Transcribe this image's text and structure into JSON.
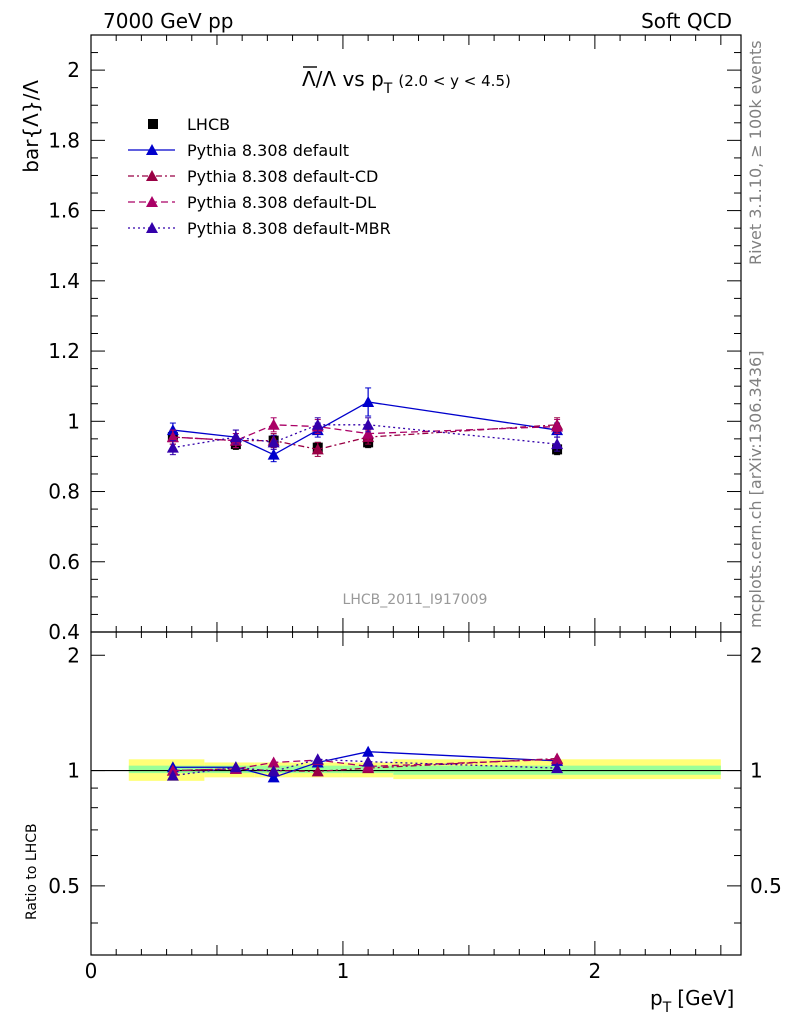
{
  "header": {
    "left": "7000 GeV pp",
    "right": "Soft QCD"
  },
  "side_labels": {
    "rivet": "Rivet 3.1.10, ≥ 100k events",
    "mcplots": "mcplots.cern.ch [arXiv:1306.3436]"
  },
  "colors": {
    "data": "#000000",
    "default": "#0000cc",
    "cd": "#990044",
    "dl": "#aa0066",
    "mbr": "#3300aa",
    "band_inner": "#99ff99",
    "band_outer": "#ffff77"
  },
  "chart_data": [
    {
      "type": "scatter",
      "panel": "main",
      "title_main": "Λ/Λ vs p",
      "title_sub": "T",
      "title_cut": "(2.0 < y < 4.5)",
      "ylabel": "bar{Λ}/Λ",
      "watermark": "LHCB_2011_I917009",
      "xlim": [
        0,
        2.58
      ],
      "ylim": [
        0.4,
        2.1
      ],
      "yticks": [
        0.6,
        0.8,
        1,
        1.2,
        1.4,
        1.6,
        1.8,
        2
      ],
      "ytick_labels": [
        "0.6",
        "0.8",
        "1",
        "1.2",
        "1.4",
        "1.6",
        "1.8",
        "2"
      ],
      "y_bottom_partial_label": "0.4",
      "x": [
        0.325,
        0.575,
        0.725,
        0.9,
        1.1,
        1.85
      ],
      "series": [
        {
          "name": "LHCB",
          "key": "data",
          "style": "marker",
          "marker": "square",
          "values": [
            0.955,
            0.935,
            0.945,
            0.925,
            0.94,
            0.92
          ],
          "errors": [
            0.02,
            0.015,
            0.015,
            0.015,
            0.015,
            0.015
          ]
        },
        {
          "name": "Pythia 8.308 default",
          "key": "default",
          "style": "solid",
          "marker": "triangle",
          "values": [
            0.975,
            0.955,
            0.905,
            0.975,
            1.055,
            0.975
          ],
          "errors": [
            0.02,
            0.02,
            0.02,
            0.02,
            0.04,
            0.02
          ]
        },
        {
          "name": "Pythia 8.308 default-CD",
          "key": "cd",
          "style": "dashdot",
          "marker": "triangle",
          "values": [
            0.955,
            0.945,
            0.945,
            0.92,
            0.955,
            0.99
          ],
          "errors": [
            0.02,
            0.02,
            0.02,
            0.02,
            0.02,
            0.02
          ]
        },
        {
          "name": "Pythia 8.308 default-DL",
          "key": "dl",
          "style": "dashed",
          "marker": "triangle",
          "values": [
            0.955,
            0.945,
            0.99,
            0.985,
            0.965,
            0.985
          ],
          "errors": [
            0.02,
            0.02,
            0.02,
            0.02,
            0.02,
            0.02
          ]
        },
        {
          "name": "Pythia 8.308 default-MBR",
          "key": "mbr",
          "style": "dotted",
          "marker": "triangle",
          "values": [
            0.925,
            0.955,
            0.94,
            0.99,
            0.99,
            0.935
          ],
          "errors": [
            0.02,
            0.02,
            0.02,
            0.02,
            0.02,
            0.02
          ]
        }
      ]
    },
    {
      "type": "line",
      "panel": "ratio",
      "ylabel": "Ratio to LHCB",
      "xlabel_main": "p",
      "xlabel_sub": "T",
      "xlabel_unit": "[GeV]",
      "xlim": [
        0,
        2.58
      ],
      "ylim": [
        0.33,
        2.3
      ],
      "xticks": [
        0,
        1,
        2
      ],
      "xtick_labels": [
        "0",
        "1",
        "2"
      ],
      "yticks": [
        0.5,
        1,
        2
      ],
      "ytick_labels": [
        "0.5",
        "1",
        "2"
      ],
      "bands": [
        {
          "x": [
            0.15,
            0.45
          ],
          "inner": [
            0.985,
            1.03
          ],
          "outer": [
            0.94,
            1.07
          ]
        },
        {
          "x": [
            0.45,
            0.65
          ],
          "inner": [
            0.985,
            1.03
          ],
          "outer": [
            0.96,
            1.05
          ]
        },
        {
          "x": [
            0.65,
            0.8
          ],
          "inner": [
            0.985,
            1.03
          ],
          "outer": [
            0.96,
            1.05
          ]
        },
        {
          "x": [
            0.8,
            1.0
          ],
          "inner": [
            0.985,
            1.03
          ],
          "outer": [
            0.96,
            1.05
          ]
        },
        {
          "x": [
            1.0,
            1.2
          ],
          "inner": [
            0.985,
            1.03
          ],
          "outer": [
            0.96,
            1.05
          ]
        },
        {
          "x": [
            1.2,
            2.5
          ],
          "inner": [
            0.975,
            1.03
          ],
          "outer": [
            0.95,
            1.07
          ]
        }
      ],
      "reference": 1,
      "x": [
        0.325,
        0.575,
        0.725,
        0.9,
        1.1,
        1.85
      ],
      "series": [
        {
          "name": "Pythia 8.308 default",
          "key": "default",
          "style": "solid",
          "values": [
            1.02,
            1.02,
            0.96,
            1.05,
            1.12,
            1.06
          ],
          "errors": [
            0.02,
            0.02,
            0.02,
            0.02,
            0.03,
            0.02
          ]
        },
        {
          "name": "Pythia 8.308 default-CD",
          "key": "cd",
          "style": "dashdot",
          "values": [
            1.0,
            1.01,
            1.0,
            0.995,
            1.015,
            1.075
          ],
          "errors": [
            0.02,
            0.02,
            0.02,
            0.02,
            0.02,
            0.02
          ]
        },
        {
          "name": "Pythia 8.308 default-DL",
          "key": "dl",
          "style": "dashed",
          "values": [
            1.0,
            1.01,
            1.05,
            1.065,
            1.025,
            1.07
          ],
          "errors": [
            0.02,
            0.02,
            0.02,
            0.02,
            0.02,
            0.02
          ]
        },
        {
          "name": "Pythia 8.308 default-MBR",
          "key": "mbr",
          "style": "dotted",
          "values": [
            0.97,
            1.02,
            0.995,
            1.07,
            1.055,
            1.015
          ],
          "errors": [
            0.02,
            0.02,
            0.02,
            0.02,
            0.02,
            0.02
          ]
        }
      ]
    }
  ]
}
